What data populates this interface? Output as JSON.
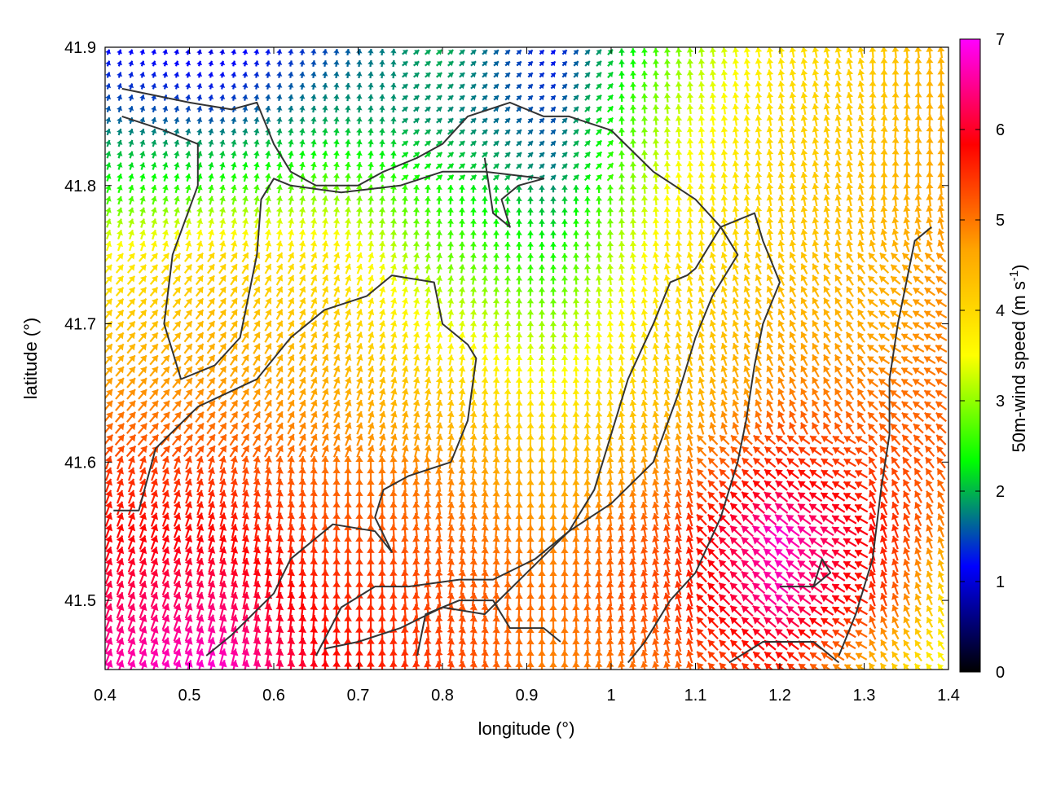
{
  "chart_data": {
    "type": "vector-field",
    "xlabel": "longitude (°)",
    "ylabel": "latitude (°)",
    "colorbar_label_main": "50m-wind speed (m s",
    "colorbar_label_sup": "-1",
    "colorbar_label_end": ")",
    "xlim": [
      0.4,
      1.4
    ],
    "ylim": [
      41.45,
      41.9
    ],
    "x_ticks": [
      0.4,
      0.5,
      0.6,
      0.7,
      0.8,
      0.9,
      1.0,
      1.1,
      1.2,
      1.3,
      1.4
    ],
    "x_tick_labels": [
      "0.4",
      "0.5",
      "0.6",
      "0.7",
      "0.8",
      "0.9",
      "1",
      "1.1",
      "1.2",
      "1.3",
      "1.4"
    ],
    "y_ticks": [
      41.5,
      41.6,
      41.7,
      41.8,
      41.9
    ],
    "y_tick_labels": [
      "41.5",
      "41.6",
      "41.7",
      "41.8",
      "41.9"
    ],
    "colorbar_range": [
      0,
      7
    ],
    "colorbar_ticks": [
      0,
      1,
      2,
      3,
      4,
      5,
      6,
      7
    ],
    "colorbar_tick_labels": [
      "0",
      "1",
      "2",
      "3",
      "4",
      "5",
      "6",
      "7"
    ],
    "colormap": [
      "#000000",
      "#0000ff",
      "#00ff00",
      "#ffff00",
      "#ffa500",
      "#ff0000",
      "#ff00ff"
    ],
    "grid": false,
    "speed_field": {
      "lon": [
        0.4,
        0.53,
        0.67,
        0.8,
        0.93,
        1.07,
        1.2,
        1.33,
        1.4
      ],
      "lat": [
        41.9,
        41.85,
        41.8,
        41.75,
        41.7,
        41.65,
        41.6,
        41.55,
        41.5,
        41.45
      ],
      "values": [
        [
          1.2,
          1.0,
          1.5,
          2.0,
          1.2,
          2.8,
          3.8,
          4.2,
          4.5
        ],
        [
          1.6,
          1.5,
          1.9,
          1.8,
          1.5,
          3.2,
          4.0,
          4.3,
          4.6
        ],
        [
          2.4,
          2.5,
          2.8,
          2.4,
          1.8,
          3.5,
          4.1,
          4.4,
          4.7
        ],
        [
          3.6,
          4.0,
          3.8,
          2.8,
          2.4,
          3.8,
          4.2,
          4.5,
          4.8
        ],
        [
          4.2,
          4.4,
          4.2,
          3.4,
          3.0,
          4.0,
          4.5,
          4.6,
          4.9
        ],
        [
          4.8,
          4.8,
          4.6,
          4.2,
          3.6,
          4.3,
          4.9,
          5.0,
          5.1
        ],
        [
          5.4,
          5.3,
          5.0,
          4.8,
          4.3,
          4.8,
          5.6,
          5.3,
          5.2
        ],
        [
          5.8,
          5.8,
          5.3,
          5.1,
          4.8,
          5.3,
          6.8,
          5.6,
          4.8
        ],
        [
          6.2,
          6.3,
          5.6,
          5.3,
          5.0,
          5.4,
          6.6,
          5.3,
          3.8
        ],
        [
          6.6,
          6.8,
          5.8,
          5.4,
          4.9,
          5.1,
          5.6,
          4.2,
          3.5
        ]
      ]
    },
    "contours": [
      [
        [
          0.42,
          41.87
        ],
        [
          0.5,
          41.86
        ],
        [
          0.55,
          41.855
        ],
        [
          0.58,
          41.86
        ],
        [
          0.6,
          41.83
        ],
        [
          0.62,
          41.81
        ],
        [
          0.65,
          41.8
        ],
        [
          0.7,
          41.8
        ],
        [
          0.73,
          41.81
        ],
        [
          0.77,
          41.82
        ],
        [
          0.8,
          41.83
        ],
        [
          0.83,
          41.85
        ],
        [
          0.88,
          41.86
        ],
        [
          0.92,
          41.85
        ],
        [
          0.95,
          41.85
        ],
        [
          1.0,
          41.84
        ],
        [
          1.05,
          41.81
        ],
        [
          1.1,
          41.79
        ],
        [
          1.13,
          41.77
        ],
        [
          1.15,
          41.75
        ],
        [
          1.12,
          41.72
        ],
        [
          1.1,
          41.69
        ],
        [
          1.08,
          41.65
        ],
        [
          1.05,
          41.6
        ],
        [
          1.0,
          41.57
        ],
        [
          0.95,
          41.55
        ],
        [
          0.9,
          41.52
        ],
        [
          0.85,
          41.49
        ],
        [
          0.8,
          41.495
        ],
        [
          0.75,
          41.48
        ],
        [
          0.7,
          41.47
        ],
        [
          0.66,
          41.465
        ]
      ],
      [
        [
          0.42,
          41.85
        ],
        [
          0.47,
          41.84
        ],
        [
          0.51,
          41.83
        ],
        [
          0.51,
          41.8
        ],
        [
          0.48,
          41.75
        ],
        [
          0.47,
          41.7
        ],
        [
          0.49,
          41.66
        ],
        [
          0.53,
          41.67
        ],
        [
          0.56,
          41.69
        ],
        [
          0.58,
          41.75
        ],
        [
          0.585,
          41.79
        ],
        [
          0.6,
          41.805
        ],
        [
          0.62,
          41.8
        ],
        [
          0.68,
          41.795
        ],
        [
          0.75,
          41.8
        ],
        [
          0.8,
          41.81
        ],
        [
          0.85,
          41.81
        ],
        [
          0.92,
          41.805
        ],
        [
          0.89,
          41.8
        ],
        [
          0.87,
          41.79
        ],
        [
          0.88,
          41.77
        ],
        [
          0.86,
          41.78
        ],
        [
          0.85,
          41.82
        ]
      ],
      [
        [
          0.41,
          41.565
        ],
        [
          0.44,
          41.565
        ],
        [
          0.46,
          41.61
        ],
        [
          0.51,
          41.64
        ],
        [
          0.58,
          41.66
        ],
        [
          0.62,
          41.69
        ],
        [
          0.66,
          41.71
        ],
        [
          0.71,
          41.72
        ],
        [
          0.74,
          41.735
        ],
        [
          0.79,
          41.73
        ],
        [
          0.8,
          41.7
        ],
        [
          0.83,
          41.685
        ],
        [
          0.84,
          41.675
        ],
        [
          0.83,
          41.63
        ],
        [
          0.81,
          41.6
        ],
        [
          0.76,
          41.59
        ],
        [
          0.73,
          41.58
        ],
        [
          0.72,
          41.56
        ],
        [
          0.74,
          41.535
        ],
        [
          0.72,
          41.55
        ],
        [
          0.67,
          41.555
        ],
        [
          0.62,
          41.53
        ],
        [
          0.6,
          41.505
        ],
        [
          0.55,
          41.475
        ],
        [
          0.52,
          41.46
        ]
      ],
      [
        [
          0.65,
          41.46
        ],
        [
          0.68,
          41.495
        ],
        [
          0.72,
          41.51
        ],
        [
          0.76,
          41.51
        ],
        [
          0.82,
          41.515
        ],
        [
          0.86,
          41.515
        ],
        [
          0.91,
          41.53
        ],
        [
          0.95,
          41.55
        ],
        [
          0.98,
          41.58
        ],
        [
          1.0,
          41.62
        ],
        [
          1.02,
          41.66
        ],
        [
          1.05,
          41.7
        ],
        [
          1.07,
          41.73
        ],
        [
          1.09,
          41.735
        ],
        [
          1.1,
          41.74
        ],
        [
          1.13,
          41.77
        ],
        [
          1.17,
          41.78
        ],
        [
          1.18,
          41.76
        ],
        [
          1.2,
          41.73
        ],
        [
          1.18,
          41.7
        ],
        [
          1.17,
          41.67
        ],
        [
          1.16,
          41.63
        ],
        [
          1.15,
          41.6
        ],
        [
          1.13,
          41.56
        ],
        [
          1.1,
          41.52
        ],
        [
          1.07,
          41.5
        ],
        [
          1.04,
          41.47
        ],
        [
          1.02,
          41.455
        ]
      ],
      [
        [
          1.27,
          41.46
        ],
        [
          1.29,
          41.49
        ],
        [
          1.31,
          41.53
        ],
        [
          1.32,
          41.58
        ],
        [
          1.33,
          41.62
        ],
        [
          1.33,
          41.66
        ],
        [
          1.34,
          41.7
        ],
        [
          1.35,
          41.73
        ],
        [
          1.36,
          41.76
        ],
        [
          1.38,
          41.77
        ]
      ],
      [
        [
          1.14,
          41.455
        ],
        [
          1.18,
          41.47
        ],
        [
          1.24,
          41.47
        ],
        [
          1.27,
          41.455
        ]
      ],
      [
        [
          1.2,
          41.51
        ],
        [
          1.24,
          41.51
        ],
        [
          1.26,
          41.52
        ],
        [
          1.25,
          41.53
        ],
        [
          1.24,
          41.51
        ]
      ],
      [
        [
          0.77,
          41.46
        ],
        [
          0.78,
          41.49
        ],
        [
          0.82,
          41.5
        ],
        [
          0.86,
          41.5
        ],
        [
          0.88,
          41.48
        ],
        [
          0.92,
          41.48
        ],
        [
          0.94,
          41.47
        ]
      ]
    ]
  }
}
